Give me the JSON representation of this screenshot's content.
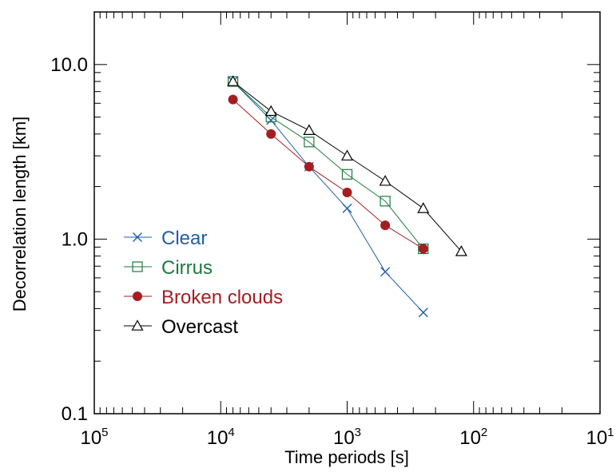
{
  "chart_data": {
    "type": "line",
    "xlabel": "Time periods [s]",
    "ylabel": "Decorrelation length [km]",
    "x_scale": "log",
    "y_scale": "log",
    "x_reversed": true,
    "xlim": [
      100000,
      10
    ],
    "ylim": [
      0.1,
      20
    ],
    "x_ticks": [
      {
        "value": 100000,
        "base": "10",
        "exp": "5"
      },
      {
        "value": 10000,
        "base": "10",
        "exp": "4"
      },
      {
        "value": 1000,
        "base": "10",
        "exp": "3"
      },
      {
        "value": 100,
        "base": "10",
        "exp": "2"
      },
      {
        "value": 10,
        "base": "10",
        "exp": "1"
      }
    ],
    "y_ticks": [
      {
        "value": 0.1,
        "label": "0.1"
      },
      {
        "value": 1.0,
        "label": "1.0"
      },
      {
        "value": 10.0,
        "label": "10.0"
      }
    ],
    "grid": false,
    "legend_position": "middle-left",
    "series": [
      {
        "name": "Clear",
        "color": "#1f5fa8",
        "marker": "x-icon",
        "x": [
          8000,
          4000,
          2000,
          1000,
          500,
          250
        ],
        "y": [
          8.0,
          4.8,
          2.6,
          1.5,
          0.65,
          0.38
        ]
      },
      {
        "name": "Cirrus",
        "color": "#1e7a3c",
        "marker": "square-icon",
        "x": [
          8000,
          4000,
          2000,
          1000,
          500,
          250
        ],
        "y": [
          8.0,
          5.0,
          3.6,
          2.35,
          1.65,
          0.88
        ]
      },
      {
        "name": "Broken clouds",
        "color": "#a31e22",
        "marker": "filled-circle-icon",
        "x": [
          8000,
          4000,
          2000,
          1000,
          500,
          250
        ],
        "y": [
          6.3,
          4.0,
          2.6,
          1.85,
          1.2,
          0.88
        ]
      },
      {
        "name": "Overcast",
        "color": "#000000",
        "marker": "triangle-icon",
        "x": [
          8000,
          4000,
          2000,
          1000,
          500,
          250,
          125
        ],
        "y": [
          8.0,
          5.4,
          4.2,
          3.0,
          2.15,
          1.5,
          0.85
        ]
      }
    ]
  }
}
